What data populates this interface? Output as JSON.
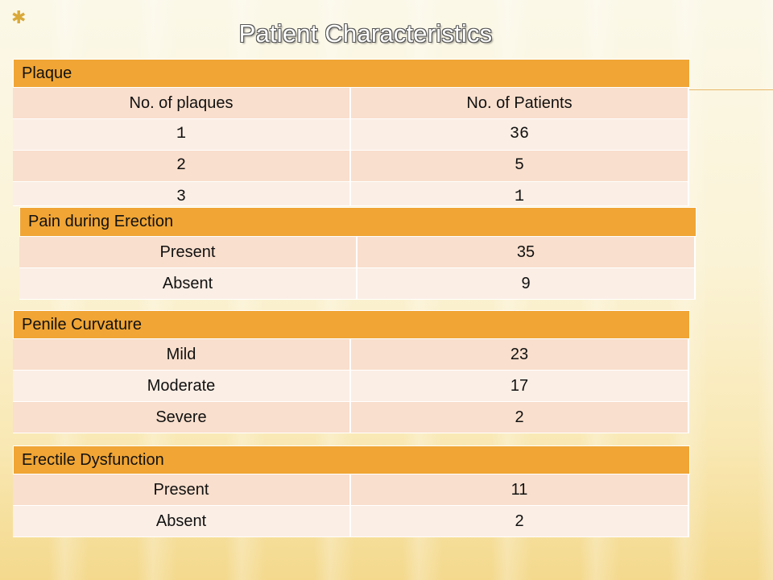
{
  "title": "Patient Characteristics",
  "corner_mark": "✱",
  "plaque": {
    "header": "Plaque",
    "col1": "No. of plaques",
    "col2": "No. of Patients",
    "rows": [
      {
        "a": "1",
        "b": "36"
      },
      {
        "a": "2",
        "b": "5"
      },
      {
        "a": "3",
        "b": "1"
      }
    ]
  },
  "pain": {
    "header": "Pain during Erection",
    "rows": [
      {
        "a": "Present",
        "b": "35"
      },
      {
        "a": "Absent",
        "b": "9"
      }
    ]
  },
  "curvature": {
    "header": "Penile Curvature",
    "rows": [
      {
        "a": "Mild",
        "b": "23"
      },
      {
        "a": "Moderate",
        "b": "17"
      },
      {
        "a": "Severe",
        "b": "2"
      }
    ]
  },
  "ed": {
    "header": "Erectile Dysfunction",
    "rows": [
      {
        "a": "Present",
        "b": "11"
      },
      {
        "a": "Absent",
        "b": "2"
      }
    ]
  }
}
